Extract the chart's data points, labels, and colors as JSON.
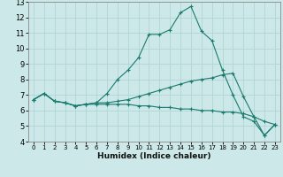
{
  "title": "",
  "xlabel": "Humidex (Indice chaleur)",
  "ylabel": "",
  "bg_color": "#cce8e8",
  "line_color": "#1a7a6e",
  "xlim": [
    -0.5,
    23.5
  ],
  "ylim": [
    4,
    13
  ],
  "yticks": [
    4,
    5,
    6,
    7,
    8,
    9,
    10,
    11,
    12,
    13
  ],
  "xticks": [
    0,
    1,
    2,
    3,
    4,
    5,
    6,
    7,
    8,
    9,
    10,
    11,
    12,
    13,
    14,
    15,
    16,
    17,
    18,
    19,
    20,
    21,
    22,
    23
  ],
  "line1_x": [
    0,
    1,
    2,
    3,
    4,
    5,
    6,
    7,
    8,
    9,
    10,
    11,
    12,
    13,
    14,
    15,
    16,
    17,
    18,
    19,
    20,
    21,
    22,
    23
  ],
  "line1_y": [
    6.7,
    7.1,
    6.6,
    6.5,
    6.3,
    6.4,
    6.5,
    7.1,
    8.0,
    8.6,
    9.4,
    10.9,
    10.9,
    11.2,
    12.3,
    12.7,
    11.1,
    10.5,
    8.6,
    7.0,
    5.6,
    5.3,
    4.4,
    5.1
  ],
  "line2_x": [
    0,
    1,
    2,
    3,
    4,
    5,
    6,
    7,
    8,
    9,
    10,
    11,
    12,
    13,
    14,
    15,
    16,
    17,
    18,
    19,
    20,
    21,
    22,
    23
  ],
  "line2_y": [
    6.7,
    7.1,
    6.6,
    6.5,
    6.3,
    6.4,
    6.5,
    6.5,
    6.6,
    6.7,
    6.9,
    7.1,
    7.3,
    7.5,
    7.7,
    7.9,
    8.0,
    8.1,
    8.3,
    8.4,
    6.9,
    5.6,
    5.3,
    5.1
  ],
  "line3_x": [
    0,
    1,
    2,
    3,
    4,
    5,
    6,
    7,
    8,
    9,
    10,
    11,
    12,
    13,
    14,
    15,
    16,
    17,
    18,
    19,
    20,
    21,
    22,
    23
  ],
  "line3_y": [
    6.7,
    7.1,
    6.6,
    6.5,
    6.3,
    6.4,
    6.4,
    6.4,
    6.4,
    6.4,
    6.3,
    6.3,
    6.2,
    6.2,
    6.1,
    6.1,
    6.0,
    6.0,
    5.9,
    5.9,
    5.8,
    5.6,
    4.4,
    5.1
  ],
  "grid_color": "#b0d4d4",
  "spine_color": "#888888"
}
